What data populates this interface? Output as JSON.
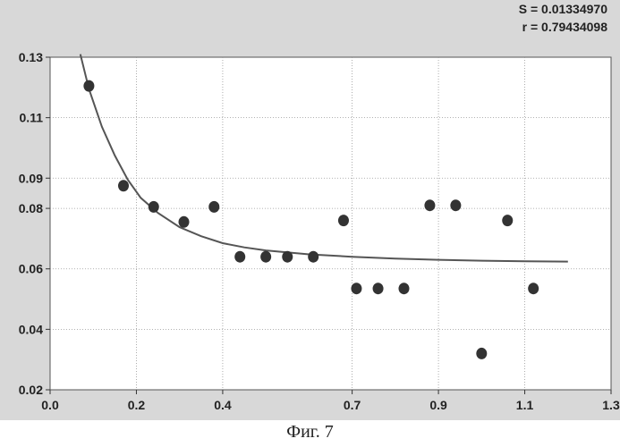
{
  "stats": {
    "s_label": "S = 0.01334970",
    "r_label": "r = 0.79434098"
  },
  "caption": "Фиг. 7",
  "colors": {
    "background": "#d8d8d8",
    "plot_area": "#ffffff",
    "points": "#333333",
    "curve": "#555555",
    "grid": "#999999"
  },
  "chart_data": {
    "type": "scatter",
    "title": "",
    "xlabel": "",
    "ylabel": "",
    "xlim": [
      0.0,
      1.3
    ],
    "ylim": [
      0.02,
      0.13
    ],
    "x_ticks": [
      {
        "value": 0.0,
        "label": "0.0"
      },
      {
        "value": 0.2,
        "label": "0.2"
      },
      {
        "value": 0.4,
        "label": "0.4"
      },
      {
        "value": 0.7,
        "label": "0.7"
      },
      {
        "value": 0.9,
        "label": "0.9"
      },
      {
        "value": 1.1,
        "label": "1.1"
      },
      {
        "value": 1.3,
        "label": "1.3"
      }
    ],
    "y_ticks": [
      {
        "value": 0.02,
        "label": "0.02"
      },
      {
        "value": 0.04,
        "label": "0.04"
      },
      {
        "value": 0.06,
        "label": "0.06"
      },
      {
        "value": 0.08,
        "label": "0.08"
      },
      {
        "value": 0.09,
        "label": "0.09"
      },
      {
        "value": 0.11,
        "label": "0.11"
      },
      {
        "value": 0.13,
        "label": "0.13"
      }
    ],
    "grid": true,
    "series": [
      {
        "kind": "points",
        "x": [
          0.09,
          0.17,
          0.24,
          0.31,
          0.38,
          0.44,
          0.5,
          0.55,
          0.61,
          0.68,
          0.71,
          0.76,
          0.82,
          0.88,
          0.94,
          1.0,
          1.06,
          1.12
        ],
        "y": [
          0.1205,
          0.0875,
          0.0805,
          0.0755,
          0.0805,
          0.064,
          0.064,
          0.064,
          0.064,
          0.076,
          0.0535,
          0.0535,
          0.0535,
          0.081,
          0.081,
          0.032,
          0.076,
          0.0535
        ]
      },
      {
        "kind": "fit-curve",
        "x": [
          0.07,
          0.09,
          0.12,
          0.15,
          0.18,
          0.21,
          0.25,
          0.3,
          0.35,
          0.4,
          0.45,
          0.5,
          0.6,
          0.7,
          0.8,
          0.9,
          1.0,
          1.1,
          1.2
        ],
        "y": [
          0.131,
          0.1195,
          0.107,
          0.0975,
          0.0895,
          0.0835,
          0.0785,
          0.0738,
          0.0708,
          0.0685,
          0.0671,
          0.0661,
          0.0648,
          0.064,
          0.0634,
          0.063,
          0.0627,
          0.0625,
          0.0624
        ]
      }
    ]
  }
}
